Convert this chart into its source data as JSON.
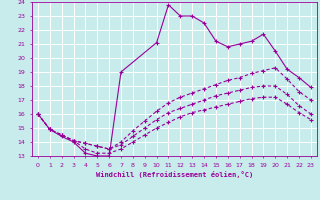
{
  "xlabel": "Windchill (Refroidissement éolien,°C)",
  "xlim": [
    -0.5,
    23.5
  ],
  "ylim": [
    13,
    24
  ],
  "xticks": [
    0,
    1,
    2,
    3,
    4,
    5,
    6,
    7,
    8,
    9,
    10,
    11,
    12,
    13,
    14,
    15,
    16,
    17,
    18,
    19,
    20,
    21,
    22,
    23
  ],
  "yticks": [
    13,
    14,
    15,
    16,
    17,
    18,
    19,
    20,
    21,
    22,
    23,
    24
  ],
  "bg_color": "#c8ecec",
  "grid_color": "#ffffff",
  "line_color": "#990099",
  "line1_x": [
    0,
    1,
    2,
    3,
    4,
    5,
    6,
    7,
    10,
    11,
    12,
    13,
    14,
    15,
    16,
    17,
    18,
    19,
    20,
    21,
    22,
    23
  ],
  "line1_y": [
    16.0,
    14.9,
    14.4,
    14.0,
    13.2,
    13.0,
    13.0,
    19.0,
    21.1,
    23.8,
    23.0,
    23.0,
    22.5,
    21.2,
    20.8,
    21.0,
    21.2,
    21.7,
    20.5,
    19.2,
    18.6,
    17.9
  ],
  "line2_x": [
    0,
    1,
    2,
    3,
    4,
    5,
    6,
    7,
    8,
    9,
    10,
    11,
    12,
    13,
    14,
    15,
    16,
    17,
    18,
    19,
    20,
    21,
    22,
    23
  ],
  "line2_y": [
    16.0,
    14.9,
    14.5,
    14.1,
    13.9,
    13.7,
    13.5,
    14.0,
    14.8,
    15.5,
    16.2,
    16.8,
    17.2,
    17.5,
    17.8,
    18.1,
    18.4,
    18.6,
    18.9,
    19.1,
    19.3,
    18.5,
    17.6,
    17.0
  ],
  "line3_x": [
    0,
    1,
    2,
    3,
    4,
    5,
    6,
    7,
    8,
    9,
    10,
    11,
    12,
    13,
    14,
    15,
    16,
    17,
    18,
    19,
    20,
    21,
    22,
    23
  ],
  "line3_y": [
    16.0,
    14.9,
    14.5,
    14.1,
    13.9,
    13.7,
    13.5,
    13.8,
    14.4,
    15.0,
    15.6,
    16.1,
    16.4,
    16.7,
    17.0,
    17.3,
    17.5,
    17.7,
    17.9,
    18.0,
    18.0,
    17.4,
    16.6,
    16.0
  ],
  "line4_x": [
    0,
    1,
    2,
    3,
    4,
    5,
    6,
    7,
    8,
    9,
    10,
    11,
    12,
    13,
    14,
    15,
    16,
    17,
    18,
    19,
    20,
    21,
    22,
    23
  ],
  "line4_y": [
    16.0,
    14.9,
    14.5,
    14.1,
    13.5,
    13.2,
    13.2,
    13.5,
    14.0,
    14.5,
    15.0,
    15.4,
    15.8,
    16.1,
    16.3,
    16.5,
    16.7,
    16.9,
    17.1,
    17.2,
    17.2,
    16.7,
    16.1,
    15.6
  ]
}
